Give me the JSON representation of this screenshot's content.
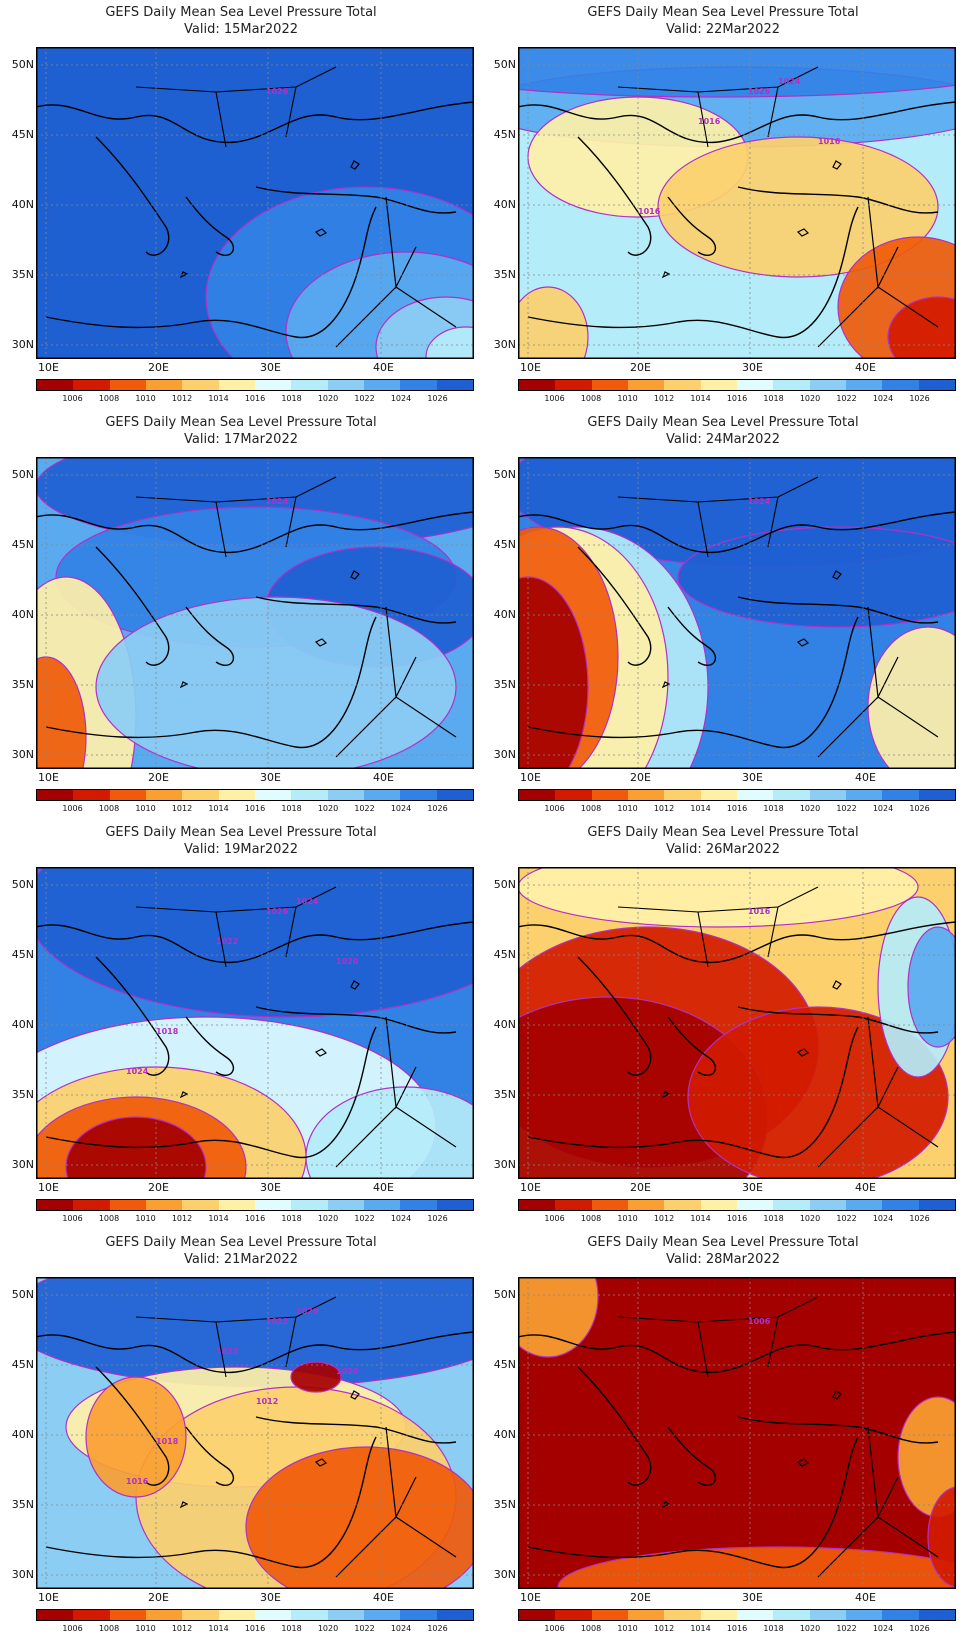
{
  "title_line1": "GEFS Daily Mean Sea Level Pressure Total",
  "panels": [
    {
      "date": "Valid: 15Mar2022"
    },
    {
      "date": "Valid: 22Mar2022"
    },
    {
      "date": "Valid: 17Mar2022"
    },
    {
      "date": "Valid: 24Mar2022"
    },
    {
      "date": "Valid: 19Mar2022"
    },
    {
      "date": "Valid: 26Mar2022"
    },
    {
      "date": "Valid: 21Mar2022"
    },
    {
      "date": "Valid: 28Mar2022"
    }
  ],
  "lat_labels": [
    "50N",
    "45N",
    "40N",
    "35N",
    "30N"
  ],
  "lon_labels": [
    "10E",
    "20E",
    "30E",
    "40E"
  ],
  "colorbar": {
    "labels": [
      "1006",
      "1008",
      "1010",
      "1012",
      "1014",
      "1016",
      "1018",
      "1020",
      "1022",
      "1024",
      "1026"
    ],
    "colors": [
      "#a50000",
      "#d21a00",
      "#f05a0a",
      "#faa032",
      "#fcd06c",
      "#fff0a8",
      "#e0fcff",
      "#b4ecfa",
      "#8ccdf4",
      "#5aaaf0",
      "#3282e6",
      "#1e5fd2"
    ]
  },
  "contour_labels": [
    [
      "1026"
    ],
    [
      "1026",
      "1024",
      "1016",
      "1016",
      "1016"
    ],
    [
      "1024"
    ],
    [
      "1024"
    ],
    [
      "1026",
      "1024",
      "1022",
      "1020",
      "1018",
      "1024"
    ],
    [
      "1016"
    ],
    [
      "1022",
      "1020",
      "1022",
      "1020",
      "1018",
      "1016",
      "1012"
    ],
    [
      "1006"
    ]
  ]
}
